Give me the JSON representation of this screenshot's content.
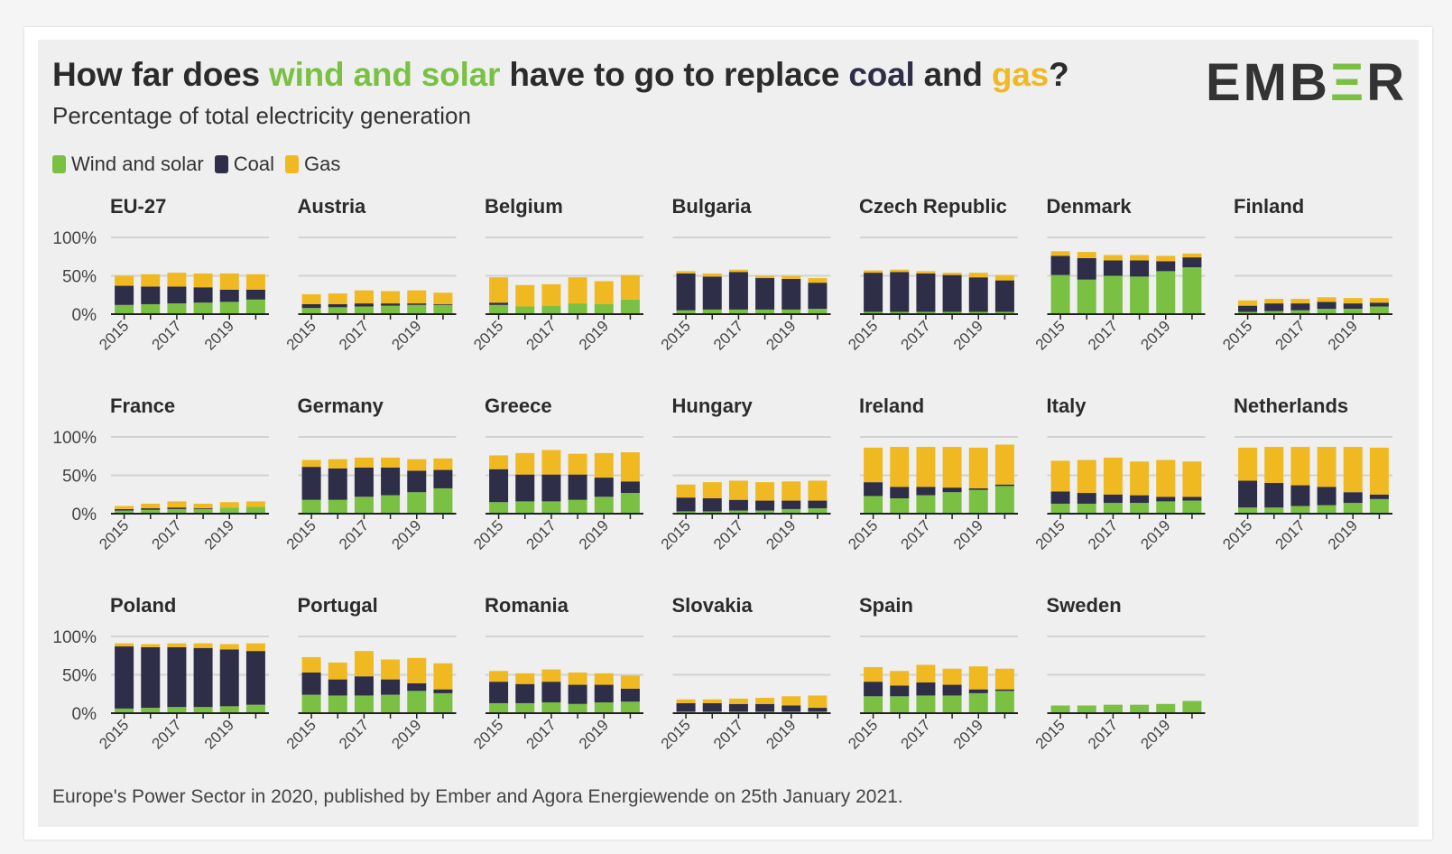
{
  "header": {
    "title_parts": [
      "How far does ",
      "wind and solar",
      " have to go to replace ",
      "coal",
      " and ",
      "gas",
      "?"
    ],
    "subtitle": "Percentage of total electricity generation",
    "logo_text": "EMBER"
  },
  "legend": [
    {
      "label": "Wind and solar",
      "color": "#7ac143"
    },
    {
      "label": "Coal",
      "color": "#2e2e48"
    },
    {
      "label": "Gas",
      "color": "#f0b922"
    }
  ],
  "colors": {
    "wind_solar": "#7ac143",
    "coal": "#2e2e48",
    "gas": "#f0b922",
    "title_text": "#2b2b2b"
  },
  "footer": "Europe's Power Sector in 2020, published by Ember and Agora Energiewende on 25th January 2021.",
  "chart_data": {
    "type": "bar",
    "stacked": true,
    "years": [
      2015,
      2016,
      2017,
      2018,
      2019,
      2020
    ],
    "x_tick_labels": [
      "2015",
      "2017",
      "2019"
    ],
    "y_tick_labels": [
      "100%",
      "50%",
      "0%"
    ],
    "ylim": [
      0,
      100
    ],
    "series_names": [
      "Wind and solar",
      "Coal",
      "Gas"
    ],
    "grid": true,
    "panels": [
      {
        "name": "EU-27",
        "wind_solar": [
          12,
          13,
          14,
          15,
          16,
          19
        ],
        "coal": [
          25,
          23,
          22,
          20,
          16,
          13
        ],
        "gas": [
          13,
          16,
          18,
          18,
          21,
          20
        ]
      },
      {
        "name": "Austria",
        "wind_solar": [
          8,
          9,
          10,
          11,
          12,
          12
        ],
        "coal": [
          5,
          4,
          4,
          3,
          2,
          1
        ],
        "gas": [
          13,
          14,
          17,
          16,
          17,
          15
        ]
      },
      {
        "name": "Belgium",
        "wind_solar": [
          12,
          10,
          11,
          14,
          13,
          19
        ],
        "coal": [
          3,
          0,
          0,
          0,
          0,
          0
        ],
        "gas": [
          33,
          28,
          28,
          34,
          30,
          32
        ]
      },
      {
        "name": "Bulgaria",
        "wind_solar": [
          5,
          6,
          6,
          6,
          6,
          7
        ],
        "coal": [
          48,
          43,
          49,
          41,
          40,
          34
        ],
        "gas": [
          3,
          4,
          3,
          3,
          4,
          6
        ]
      },
      {
        "name": "Czech Republic",
        "wind_solar": [
          3,
          3,
          3,
          3,
          3,
          3
        ],
        "coal": [
          51,
          52,
          50,
          48,
          45,
          41
        ],
        "gas": [
          3,
          3,
          3,
          3,
          6,
          7
        ]
      },
      {
        "name": "Denmark",
        "wind_solar": [
          51,
          45,
          50,
          49,
          56,
          61
        ],
        "coal": [
          25,
          28,
          20,
          21,
          13,
          13
        ],
        "gas": [
          6,
          8,
          7,
          7,
          7,
          5
        ]
      },
      {
        "name": "Finland",
        "wind_solar": [
          3,
          4,
          5,
          7,
          7,
          10
        ],
        "coal": [
          8,
          10,
          9,
          9,
          7,
          5
        ],
        "gas": [
          7,
          6,
          6,
          6,
          7,
          6
        ]
      },
      {
        "name": "France",
        "wind_solar": [
          4,
          5,
          6,
          6,
          8,
          9
        ],
        "coal": [
          2,
          2,
          2,
          1,
          0,
          0
        ],
        "gas": [
          4,
          6,
          8,
          6,
          7,
          7
        ]
      },
      {
        "name": "Germany",
        "wind_solar": [
          18,
          18,
          22,
          24,
          28,
          33
        ],
        "coal": [
          43,
          41,
          38,
          36,
          28,
          24
        ],
        "gas": [
          9,
          12,
          13,
          13,
          15,
          15
        ]
      },
      {
        "name": "Greece",
        "wind_solar": [
          15,
          16,
          16,
          18,
          22,
          27
        ],
        "coal": [
          43,
          35,
          35,
          33,
          25,
          15
        ],
        "gas": [
          18,
          28,
          32,
          27,
          32,
          38
        ]
      },
      {
        "name": "Hungary",
        "wind_solar": [
          3,
          3,
          4,
          4,
          6,
          7
        ],
        "coal": [
          18,
          17,
          14,
          13,
          11,
          10
        ],
        "gas": [
          17,
          21,
          25,
          24,
          25,
          26
        ]
      },
      {
        "name": "Ireland",
        "wind_solar": [
          23,
          20,
          24,
          28,
          31,
          36
        ],
        "coal": [
          18,
          15,
          11,
          6,
          2,
          2
        ],
        "gas": [
          45,
          52,
          52,
          53,
          53,
          52
        ]
      },
      {
        "name": "Italy",
        "wind_solar": [
          13,
          13,
          14,
          14,
          16,
          17
        ],
        "coal": [
          16,
          14,
          11,
          10,
          6,
          5
        ],
        "gas": [
          40,
          43,
          48,
          44,
          48,
          46
        ]
      },
      {
        "name": "Netherlands",
        "wind_solar": [
          8,
          8,
          10,
          11,
          14,
          19
        ],
        "coal": [
          35,
          32,
          27,
          24,
          14,
          6
        ],
        "gas": [
          43,
          47,
          50,
          52,
          59,
          61
        ]
      },
      {
        "name": "Poland",
        "wind_solar": [
          6,
          7,
          8,
          8,
          9,
          11
        ],
        "coal": [
          81,
          79,
          78,
          77,
          74,
          70
        ],
        "gas": [
          4,
          4,
          5,
          6,
          7,
          10
        ]
      },
      {
        "name": "Portugal",
        "wind_solar": [
          24,
          23,
          23,
          24,
          29,
          26
        ],
        "coal": [
          29,
          21,
          25,
          20,
          10,
          5
        ],
        "gas": [
          20,
          22,
          33,
          26,
          33,
          34
        ]
      },
      {
        "name": "Romania",
        "wind_solar": [
          13,
          13,
          14,
          12,
          14,
          15
        ],
        "coal": [
          28,
          25,
          27,
          25,
          23,
          17
        ],
        "gas": [
          14,
          14,
          16,
          16,
          15,
          17
        ]
      },
      {
        "name": "Slovakia",
        "wind_solar": [
          2,
          2,
          2,
          2,
          2,
          2
        ],
        "coal": [
          11,
          11,
          10,
          10,
          8,
          5
        ],
        "gas": [
          5,
          5,
          7,
          8,
          12,
          16
        ]
      },
      {
        "name": "Spain",
        "wind_solar": [
          22,
          22,
          23,
          23,
          26,
          29
        ],
        "coal": [
          19,
          14,
          17,
          14,
          5,
          2
        ],
        "gas": [
          19,
          19,
          23,
          21,
          30,
          27
        ]
      },
      {
        "name": "Sweden",
        "wind_solar": [
          10,
          10,
          11,
          11,
          12,
          16
        ],
        "coal": [
          0,
          0,
          0,
          0,
          0,
          0
        ],
        "gas": [
          0,
          0,
          0,
          0,
          0,
          0
        ]
      }
    ]
  }
}
